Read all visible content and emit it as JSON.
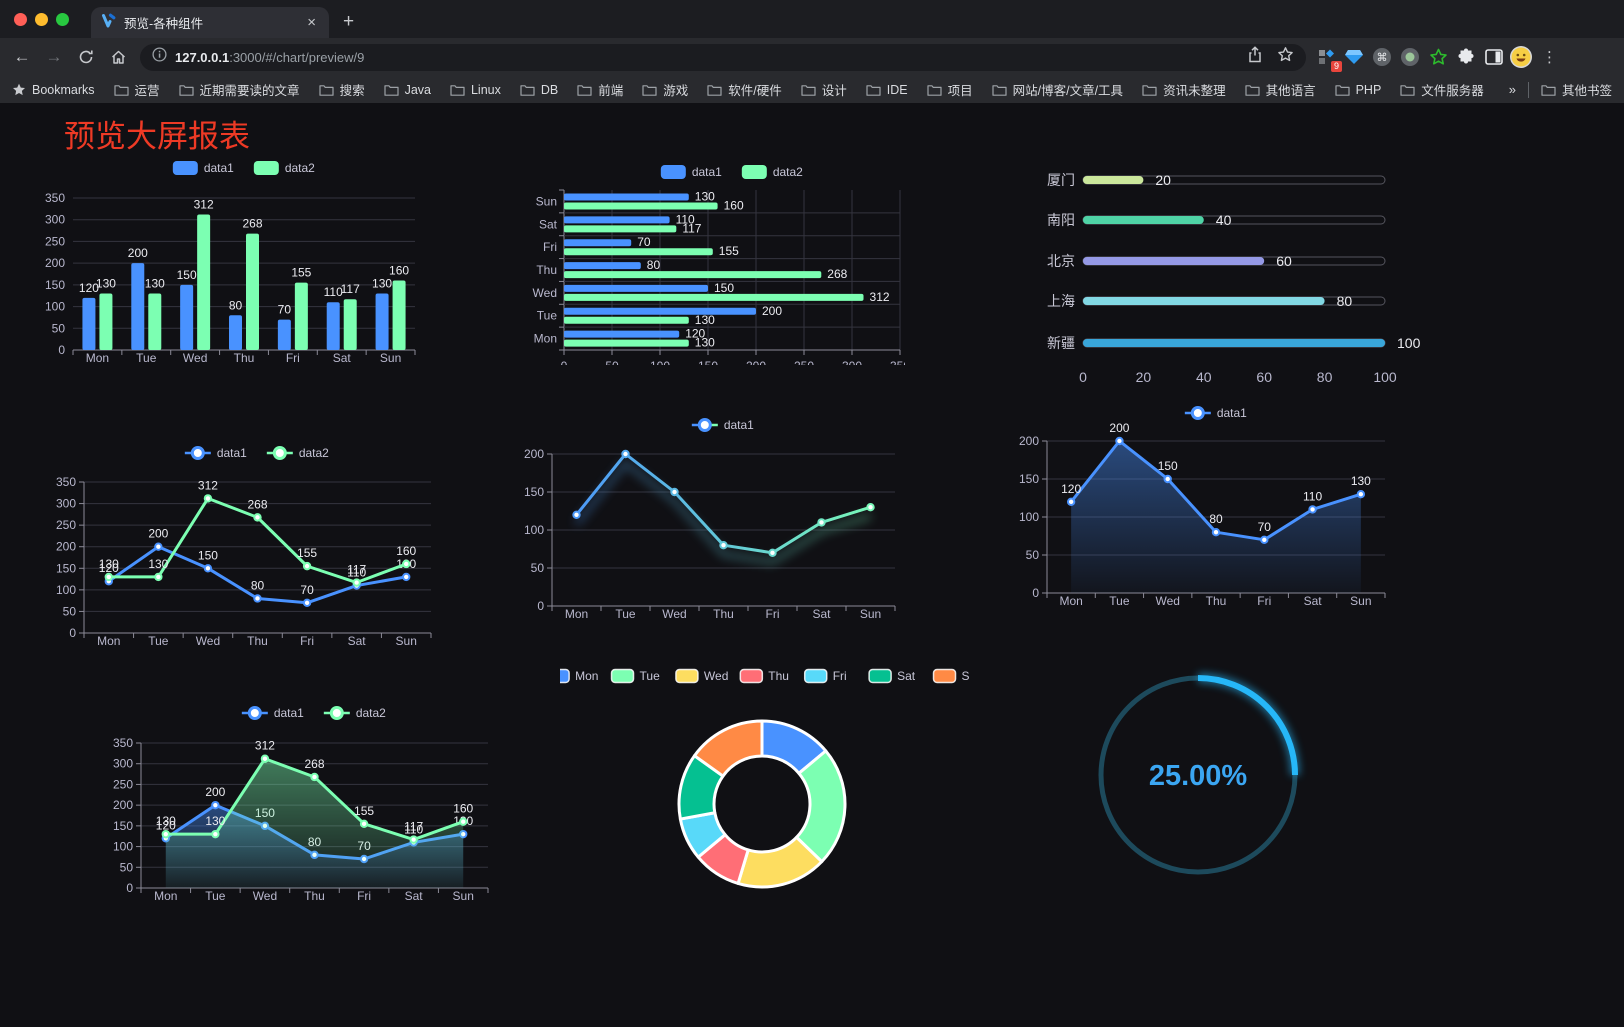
{
  "browser": {
    "tab": {
      "title": "预览-各种组件",
      "close_glyph": "×",
      "new_tab_glyph": "+"
    },
    "nav": {
      "back_glyph": "←",
      "forward_glyph": "→"
    },
    "url": {
      "host": "127.0.0.1",
      "rest": ":3000/#/chart/preview/9"
    },
    "extensions": {
      "badge": "9",
      "menu_glyph": "⋮"
    }
  },
  "bookmarks": {
    "root_label": "Bookmarks",
    "folders": [
      "运营",
      "近期需要读的文章",
      "搜索",
      "Java",
      "Linux",
      "DB",
      "前端",
      "游戏",
      "软件/硬件",
      "设计",
      "IDE",
      "项目",
      "网站/博客/文章/工具",
      "资讯未整理",
      "其他语言",
      "PHP",
      "文件服务器"
    ],
    "overflow_glyph": "»",
    "other_label": "其他书签"
  },
  "page": {
    "title": "预览大屏报表"
  },
  "chart_data": [
    {
      "id": "grouped-bar",
      "type": "bar",
      "categories": [
        "Mon",
        "Tue",
        "Wed",
        "Thu",
        "Fri",
        "Sat",
        "Sun"
      ],
      "series": [
        {
          "name": "data1",
          "color": "#4992ff",
          "values": [
            120,
            200,
            150,
            80,
            70,
            110,
            130
          ]
        },
        {
          "name": "data2",
          "color": "#7cffb2",
          "values": [
            130,
            130,
            312,
            268,
            155,
            117,
            160
          ]
        }
      ],
      "ylim": [
        0,
        350
      ],
      "ytick": 50,
      "legend_position": "top",
      "grid": true
    },
    {
      "id": "horizontal-bar",
      "type": "hbar",
      "categories": [
        "Mon",
        "Tue",
        "Wed",
        "Thu",
        "Fri",
        "Sat",
        "Sun"
      ],
      "category_order": "Sun-top",
      "series": [
        {
          "name": "data1",
          "color": "#4992ff",
          "values": [
            120,
            200,
            150,
            80,
            70,
            110,
            130
          ]
        },
        {
          "name": "data2",
          "color": "#7cffb2",
          "values": [
            130,
            130,
            312,
            268,
            155,
            117,
            160
          ]
        }
      ],
      "xlim": [
        0,
        350
      ],
      "xtick": 50,
      "legend_position": "top",
      "grid": true
    },
    {
      "id": "progress-bars",
      "type": "progress",
      "items": [
        {
          "label": "厦门",
          "value": 20,
          "color": "#cbe79c"
        },
        {
          "label": "南阳",
          "value": 40,
          "color": "#4fd3a6"
        },
        {
          "label": "北京",
          "value": 60,
          "color": "#9599e6"
        },
        {
          "label": "上海",
          "value": 80,
          "color": "#82d8e4"
        },
        {
          "label": "新疆",
          "value": 100,
          "color": "#39a6da"
        }
      ],
      "xlim": [
        0,
        100
      ],
      "ticks": [
        0,
        20,
        40,
        60,
        80,
        100
      ]
    },
    {
      "id": "line-two-series",
      "type": "line",
      "categories": [
        "Mon",
        "Tue",
        "Wed",
        "Thu",
        "Fri",
        "Sat",
        "Sun"
      ],
      "series": [
        {
          "name": "data1",
          "color": "#4992ff",
          "values": [
            120,
            200,
            150,
            80,
            70,
            110,
            130
          ]
        },
        {
          "name": "data2",
          "color": "#7cffb2",
          "values": [
            130,
            130,
            312,
            268,
            155,
            117,
            160
          ]
        }
      ],
      "ylim": [
        0,
        350
      ],
      "ytick": 50,
      "labels": true,
      "legend_position": "top",
      "grid": true
    },
    {
      "id": "line-gradient",
      "type": "line",
      "categories": [
        "Mon",
        "Tue",
        "Wed",
        "Thu",
        "Fri",
        "Sat",
        "Sun"
      ],
      "series": [
        {
          "name": "data1",
          "color": "#4992ff",
          "color2": "#7cffb2",
          "gradient": true,
          "glow": true,
          "values": [
            120,
            200,
            150,
            80,
            70,
            110,
            130
          ]
        }
      ],
      "ylim": [
        0,
        200
      ],
      "ytick": 50,
      "labels": false,
      "legend_position": "top",
      "grid": true
    },
    {
      "id": "area-single",
      "type": "line",
      "categories": [
        "Mon",
        "Tue",
        "Wed",
        "Thu",
        "Fri",
        "Sat",
        "Sun"
      ],
      "series": [
        {
          "name": "data1",
          "color": "#4992ff",
          "area": true,
          "values": [
            120,
            200,
            150,
            80,
            70,
            110,
            130
          ]
        }
      ],
      "ylim": [
        0,
        200
      ],
      "ytick": 50,
      "labels": true,
      "legend_position": "top",
      "grid": true
    },
    {
      "id": "area-two-series",
      "type": "line",
      "categories": [
        "Mon",
        "Tue",
        "Wed",
        "Thu",
        "Fri",
        "Sat",
        "Sun"
      ],
      "series": [
        {
          "name": "data1",
          "color": "#4992ff",
          "area": true,
          "values": [
            120,
            200,
            150,
            80,
            70,
            110,
            130
          ]
        },
        {
          "name": "data2",
          "color": "#7cffb2",
          "area": true,
          "values": [
            130,
            130,
            312,
            268,
            155,
            117,
            160
          ]
        }
      ],
      "ylim": [
        0,
        350
      ],
      "ytick": 50,
      "labels": true,
      "legend_position": "top",
      "grid": true
    },
    {
      "id": "doughnut",
      "type": "doughnut",
      "items": [
        {
          "label": "Mon",
          "value": 120,
          "color": "#4992ff"
        },
        {
          "label": "Tue",
          "value": 200,
          "color": "#7cffb2"
        },
        {
          "label": "Wed",
          "value": 150,
          "color": "#fddd60"
        },
        {
          "label": "Thu",
          "value": 80,
          "color": "#ff6e76"
        },
        {
          "label": "Fri",
          "value": 70,
          "color": "#58d9f9"
        },
        {
          "label": "Sat",
          "value": 110,
          "color": "#05c091"
        },
        {
          "label": "Sun",
          "value": 130,
          "color": "#ff8a45"
        }
      ],
      "legend_position": "top",
      "border_color": "#ffffff"
    },
    {
      "id": "gauge",
      "type": "gauge",
      "value": 25,
      "label": "25.00%",
      "color": "#26b7f8",
      "track_color": "#1d4a5c",
      "text_color": "#3ba6f2"
    }
  ]
}
